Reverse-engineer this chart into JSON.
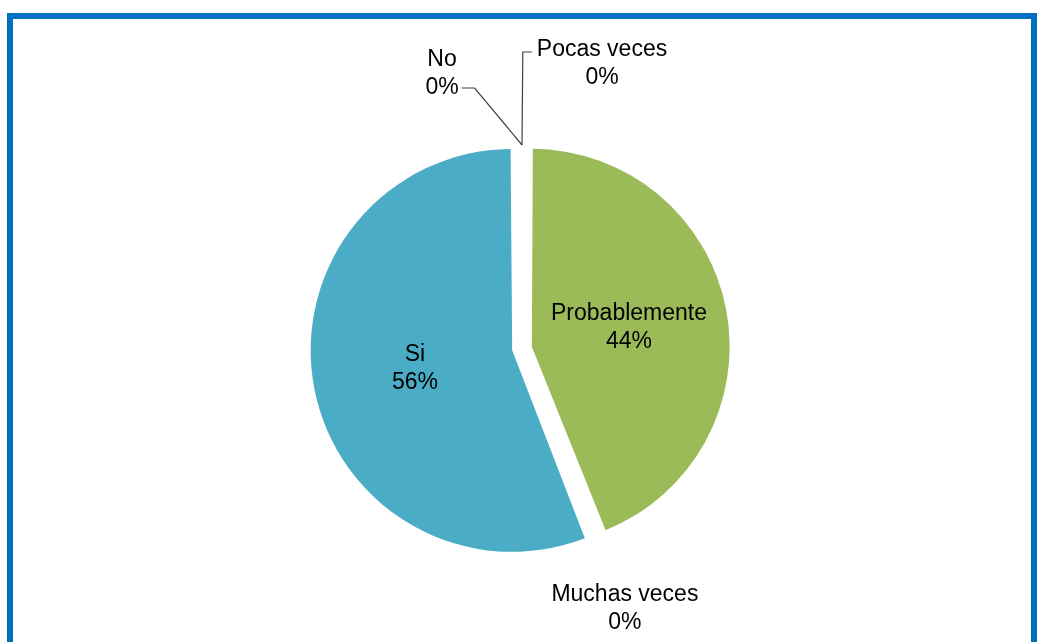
{
  "chart_data": {
    "type": "pie",
    "categories": [
      "No",
      "Pocas veces",
      "Probablemente",
      "Muchas veces",
      "Si"
    ],
    "values": [
      0,
      0,
      44,
      0,
      56
    ],
    "colors": [
      "#4f81bd",
      "#c0504d",
      "#9bbb59",
      "#8064a2",
      "#4bacc6"
    ],
    "value_labels": [
      "0%",
      "0%",
      "44%",
      "0%",
      "56%"
    ]
  }
}
